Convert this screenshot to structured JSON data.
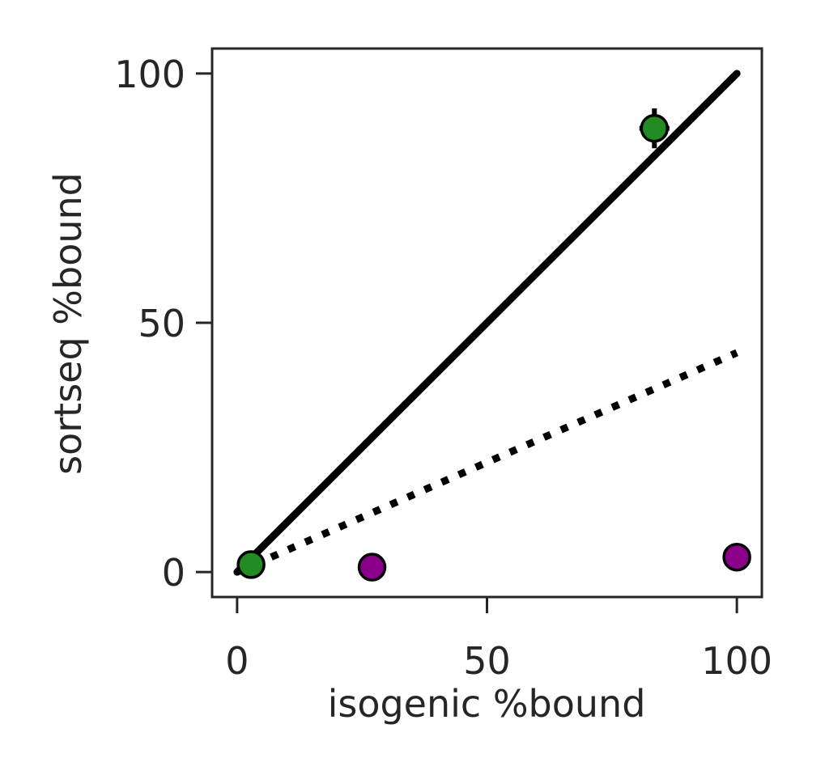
{
  "chart_data": {
    "type": "scatter",
    "xlabel": "isogenic %bound",
    "ylabel": "sortseq %bound",
    "xlim": [
      -5,
      105
    ],
    "ylim": [
      -5,
      105
    ],
    "xticks": [
      0,
      50,
      100
    ],
    "yticks": [
      0,
      50,
      100
    ],
    "xtick_labels": [
      "0",
      "50",
      "100"
    ],
    "ytick_labels": [
      "0",
      "50",
      "100"
    ],
    "grid": false,
    "lines": [
      {
        "style": "solid",
        "color": "#000000",
        "x": [
          0,
          100
        ],
        "y": [
          0,
          100
        ]
      },
      {
        "style": "dotted",
        "color": "#000000",
        "x": [
          0,
          100
        ],
        "y": [
          0,
          44
        ]
      }
    ],
    "series": [
      {
        "color": "#228b22",
        "points": [
          {
            "x": 2.8,
            "y": 1.5,
            "xerr": 0,
            "yerr": 0
          },
          {
            "x": 83.5,
            "y": 89,
            "xerr": 3,
            "yerr": 4
          }
        ]
      },
      {
        "color": "#8b008b",
        "points": [
          {
            "x": 27,
            "y": 1.0,
            "xerr": 0,
            "yerr": 0
          },
          {
            "x": 100,
            "y": 3.0,
            "xerr": 0,
            "yerr": 0
          }
        ]
      }
    ]
  }
}
